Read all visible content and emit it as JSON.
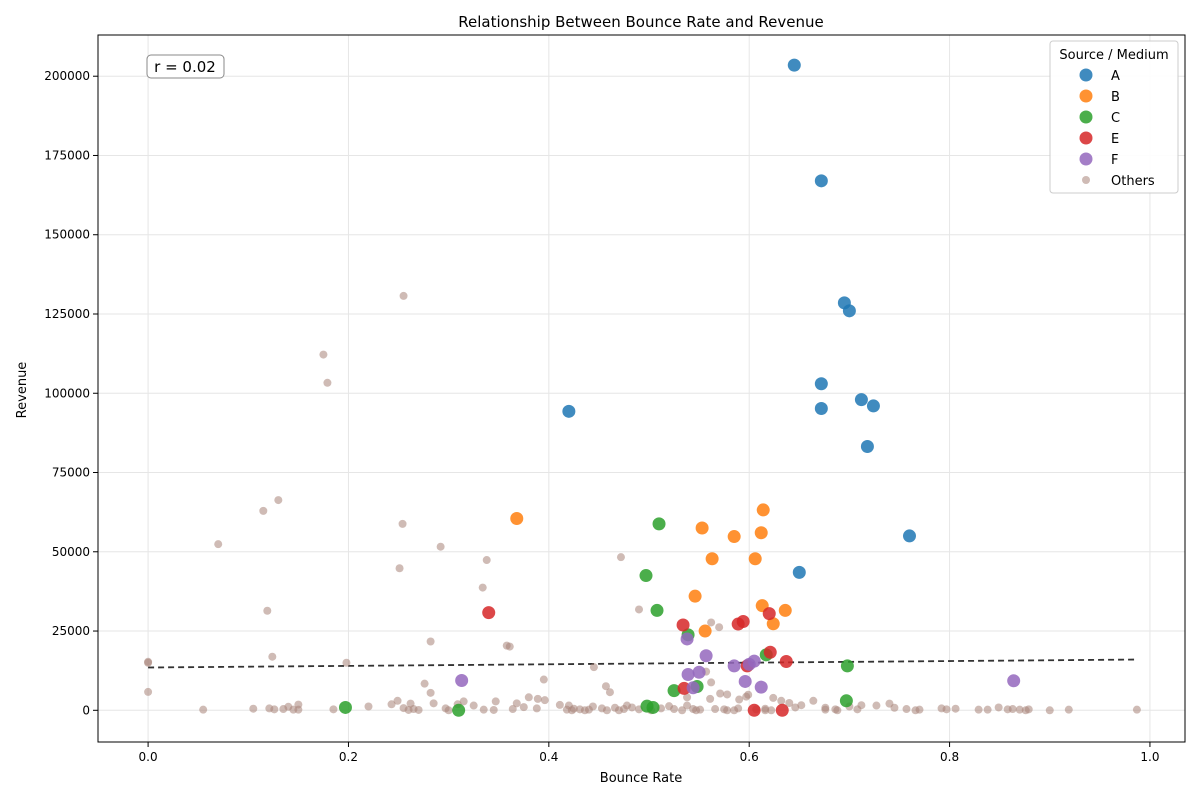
{
  "chart_data": {
    "type": "scatter",
    "title": "Relationship Between Bounce Rate and Revenue",
    "xlabel": "Bounce Rate",
    "ylabel": "Revenue",
    "xlim": [
      -0.05,
      1.035
    ],
    "ylim": [
      -10000,
      213000
    ],
    "xticks": [
      0.0,
      0.2,
      0.4,
      0.6,
      0.8,
      1.0
    ],
    "xtick_labels": [
      "0.0",
      "0.2",
      "0.4",
      "0.6",
      "0.8",
      "1.0"
    ],
    "yticks": [
      0,
      25000,
      50000,
      75000,
      100000,
      125000,
      150000,
      175000,
      200000
    ],
    "ytick_labels": [
      "0",
      "25000",
      "50000",
      "75000",
      "100000",
      "125000",
      "150000",
      "175000",
      "200000"
    ],
    "grid": true,
    "legend": {
      "title": "Source / Medium",
      "placement": "top-right"
    },
    "annotation": {
      "text": "r = 0.02",
      "placement": "top-left"
    },
    "trendline": {
      "style": "dashed",
      "color": "#333333",
      "x": [
        0.0,
        0.985
      ],
      "y": [
        13500,
        16000
      ]
    },
    "series": [
      {
        "name": "A",
        "color": "#1f77b4",
        "marker": "large",
        "points": [
          [
            0.645,
            203500
          ],
          [
            0.672,
            167000
          ],
          [
            0.695,
            128500
          ],
          [
            0.7,
            126000
          ],
          [
            0.672,
            103000
          ],
          [
            0.672,
            95200
          ],
          [
            0.712,
            98000
          ],
          [
            0.724,
            96000
          ],
          [
            0.718,
            83200
          ],
          [
            0.42,
            94300
          ],
          [
            0.76,
            55000
          ],
          [
            0.65,
            43500
          ]
        ]
      },
      {
        "name": "B",
        "color": "#ff7f0e",
        "marker": "large",
        "points": [
          [
            0.368,
            60500
          ],
          [
            0.553,
            57500
          ],
          [
            0.585,
            54800
          ],
          [
            0.614,
            63200
          ],
          [
            0.612,
            56000
          ],
          [
            0.563,
            47800
          ],
          [
            0.606,
            47800
          ],
          [
            0.546,
            36000
          ],
          [
            0.613,
            33000
          ],
          [
            0.636,
            31500
          ],
          [
            0.556,
            25000
          ],
          [
            0.624,
            27300
          ]
        ]
      },
      {
        "name": "C",
        "color": "#2ca02c",
        "marker": "large",
        "points": [
          [
            0.51,
            58800
          ],
          [
            0.497,
            42500
          ],
          [
            0.508,
            31500
          ],
          [
            0.539,
            23800
          ],
          [
            0.617,
            17500
          ],
          [
            0.698,
            14000
          ],
          [
            0.525,
            6200
          ],
          [
            0.548,
            7500
          ],
          [
            0.498,
            1300
          ],
          [
            0.504,
            900
          ],
          [
            0.697,
            3000
          ],
          [
            0.197,
            900
          ],
          [
            0.31,
            0
          ]
        ]
      },
      {
        "name": "E",
        "color": "#d62728",
        "marker": "large",
        "points": [
          [
            0.34,
            30800
          ],
          [
            0.534,
            26900
          ],
          [
            0.589,
            27200
          ],
          [
            0.594,
            28000
          ],
          [
            0.62,
            30500
          ],
          [
            0.621,
            18300
          ],
          [
            0.637,
            15400
          ],
          [
            0.598,
            14000
          ],
          [
            0.535,
            6900
          ],
          [
            0.605,
            0
          ],
          [
            0.633,
            0
          ]
        ]
      },
      {
        "name": "F",
        "color": "#9467bd",
        "marker": "large",
        "points": [
          [
            0.557,
            17200
          ],
          [
            0.538,
            22500
          ],
          [
            0.605,
            15500
          ],
          [
            0.585,
            14000
          ],
          [
            0.6,
            14500
          ],
          [
            0.55,
            12000
          ],
          [
            0.539,
            11300
          ],
          [
            0.596,
            9100
          ],
          [
            0.612,
            7300
          ],
          [
            0.544,
            7100
          ],
          [
            0.313,
            9400
          ],
          [
            0.864,
            9300
          ]
        ]
      },
      {
        "name": "Others",
        "color": "#a88478",
        "marker": "small",
        "points": [
          [
            0.255,
            130700
          ],
          [
            0.175,
            112200
          ],
          [
            0.179,
            103300
          ],
          [
            0.13,
            66300
          ],
          [
            0.115,
            62900
          ],
          [
            0.07,
            52400
          ],
          [
            0.254,
            58800
          ],
          [
            0.292,
            51600
          ],
          [
            0.472,
            48300
          ],
          [
            0.338,
            47400
          ],
          [
            0.251,
            44800
          ],
          [
            0.334,
            38700
          ],
          [
            0.49,
            31800
          ],
          [
            0.119,
            31400
          ],
          [
            0.562,
            27700
          ],
          [
            0.57,
            26200
          ],
          [
            0.282,
            21700
          ],
          [
            0.358,
            20400
          ],
          [
            0.361,
            20100
          ],
          [
            0.124,
            16900
          ],
          [
            0.0,
            15300
          ],
          [
            0.0,
            15000
          ],
          [
            0.198,
            15000
          ],
          [
            0.445,
            13600
          ],
          [
            0.557,
            12200
          ],
          [
            0.562,
            8800
          ],
          [
            0.395,
            9700
          ],
          [
            0.276,
            8400
          ],
          [
            0.457,
            7600
          ],
          [
            0.0,
            5800
          ],
          [
            0.282,
            5500
          ],
          [
            0.461,
            5700
          ],
          [
            0.599,
            4900
          ],
          [
            0.597,
            4300
          ],
          [
            0.571,
            5300
          ],
          [
            0.578,
            5000
          ],
          [
            0.38,
            4100
          ],
          [
            0.538,
            4100
          ],
          [
            0.561,
            3600
          ],
          [
            0.624,
            3900
          ],
          [
            0.396,
            3200
          ],
          [
            0.389,
            3600
          ],
          [
            0.632,
            3000
          ],
          [
            0.664,
            3000
          ],
          [
            0.59,
            3400
          ],
          [
            0.249,
            3000
          ],
          [
            0.315,
            2800
          ],
          [
            0.347,
            2800
          ],
          [
            0.243,
            1900
          ],
          [
            0.262,
            2100
          ],
          [
            0.285,
            2200
          ],
          [
            0.309,
            1900
          ],
          [
            0.325,
            1500
          ],
          [
            0.368,
            2200
          ],
          [
            0.411,
            1700
          ],
          [
            0.42,
            1500
          ],
          [
            0.444,
            1200
          ],
          [
            0.478,
            1500
          ],
          [
            0.52,
            1300
          ],
          [
            0.538,
            1500
          ],
          [
            0.64,
            2300
          ],
          [
            0.652,
            1600
          ],
          [
            0.676,
            800
          ],
          [
            0.7,
            1200
          ],
          [
            0.712,
            1600
          ],
          [
            0.74,
            2100
          ],
          [
            0.727,
            1500
          ],
          [
            0.745,
            800
          ],
          [
            0.792,
            600
          ],
          [
            0.806,
            500
          ],
          [
            0.849,
            900
          ],
          [
            0.863,
            400
          ],
          [
            0.15,
            1800
          ],
          [
            0.14,
            1100
          ],
          [
            0.22,
            1200
          ],
          [
            0.105,
            500
          ],
          [
            0.055,
            200
          ],
          [
            0.121,
            600
          ],
          [
            0.135,
            400
          ],
          [
            0.145,
            200
          ],
          [
            0.255,
            700
          ],
          [
            0.265,
            400
          ],
          [
            0.297,
            600
          ],
          [
            0.335,
            200
          ],
          [
            0.364,
            400
          ],
          [
            0.375,
            1000
          ],
          [
            0.388,
            600
          ],
          [
            0.418,
            200
          ],
          [
            0.425,
            500
          ],
          [
            0.431,
            300
          ],
          [
            0.44,
            200
          ],
          [
            0.453,
            600
          ],
          [
            0.466,
            800
          ],
          [
            0.475,
            400
          ],
          [
            0.483,
            900
          ],
          [
            0.49,
            300
          ],
          [
            0.512,
            600
          ],
          [
            0.525,
            400
          ],
          [
            0.544,
            400
          ],
          [
            0.551,
            200
          ],
          [
            0.566,
            400
          ],
          [
            0.575,
            300
          ],
          [
            0.589,
            600
          ],
          [
            0.607,
            300
          ],
          [
            0.616,
            500
          ],
          [
            0.646,
            900
          ],
          [
            0.676,
            200
          ],
          [
            0.686,
            300
          ],
          [
            0.708,
            300
          ],
          [
            0.757,
            400
          ],
          [
            0.77,
            200
          ],
          [
            0.797,
            300
          ],
          [
            0.829,
            200
          ],
          [
            0.838,
            200
          ],
          [
            0.858,
            300
          ],
          [
            0.87,
            200
          ],
          [
            0.879,
            300
          ],
          [
            0.919,
            200
          ],
          [
            0.987,
            200
          ],
          [
            0.126,
            300
          ],
          [
            0.15,
            200
          ],
          [
            0.185,
            300
          ],
          [
            0.26,
            100
          ],
          [
            0.27,
            100
          ],
          [
            0.3,
            0
          ],
          [
            0.345,
            100
          ],
          [
            0.423,
            0
          ],
          [
            0.436,
            0
          ],
          [
            0.458,
            0
          ],
          [
            0.47,
            0
          ],
          [
            0.502,
            0
          ],
          [
            0.533,
            0
          ],
          [
            0.547,
            0
          ],
          [
            0.578,
            0
          ],
          [
            0.585,
            0
          ],
          [
            0.616,
            0
          ],
          [
            0.622,
            0
          ],
          [
            0.688,
            0
          ],
          [
            0.766,
            0
          ],
          [
            0.876,
            0
          ],
          [
            0.9,
            0
          ]
        ]
      }
    ]
  }
}
